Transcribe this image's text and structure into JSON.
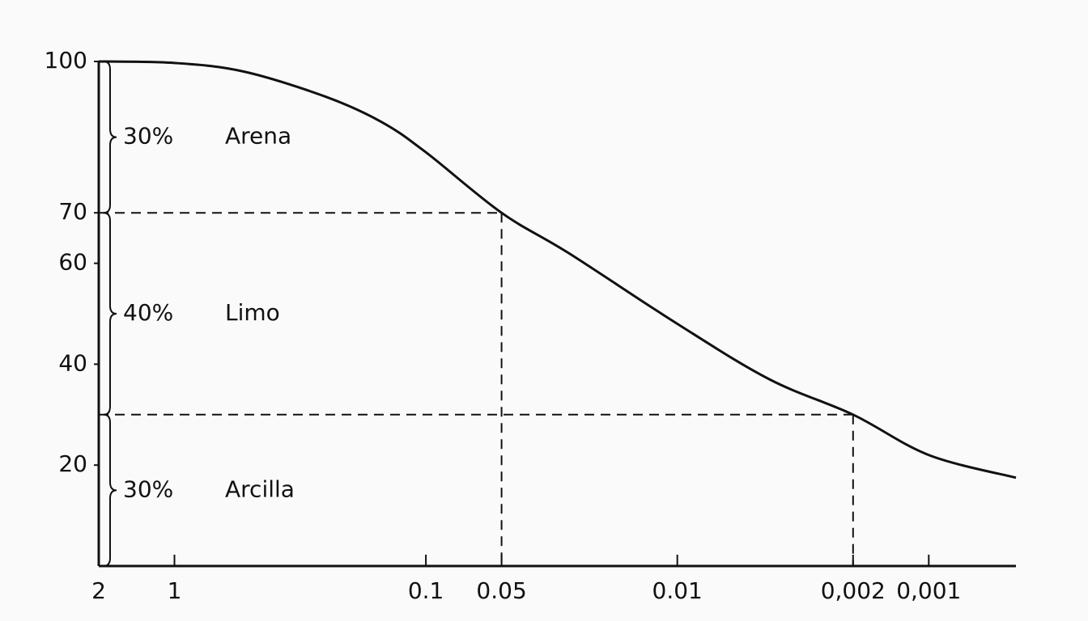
{
  "chart_data": {
    "type": "line",
    "x": [
      2,
      1,
      0.53,
      0.25,
      0.15,
      0.1,
      0.05,
      0.027,
      0.01,
      0.0043,
      0.002,
      0.001,
      0.00045
    ],
    "series": [
      {
        "color": "#111111",
        "values": [
          100,
          99.7,
          98,
          93,
          88,
          82,
          70,
          62,
          48,
          37,
          30,
          22,
          17.5
        ]
      }
    ],
    "xlim": [
      2,
      0.00045
    ],
    "xlog": true,
    "xticks": [
      2,
      1,
      0.1,
      0.05,
      0.01,
      {
        "value": 0.002,
        "label": "0,002"
      },
      {
        "value": 0.001,
        "label": "0,001"
      }
    ],
    "ylim": [
      0,
      100
    ],
    "yticks": [
      100,
      70,
      60,
      40,
      20
    ],
    "grid": false,
    "reference_points": [
      {
        "x": 0.05,
        "y": 70
      },
      {
        "x": 0.002,
        "y": 30
      }
    ],
    "annotations": [
      {
        "range": [
          70,
          100
        ],
        "percent": "30%",
        "label": "Arena"
      },
      {
        "range": [
          30,
          70
        ],
        "percent": "40%",
        "label": "Limo"
      },
      {
        "range": [
          0,
          30
        ],
        "percent": "30%",
        "label": "Arcilla"
      }
    ]
  }
}
